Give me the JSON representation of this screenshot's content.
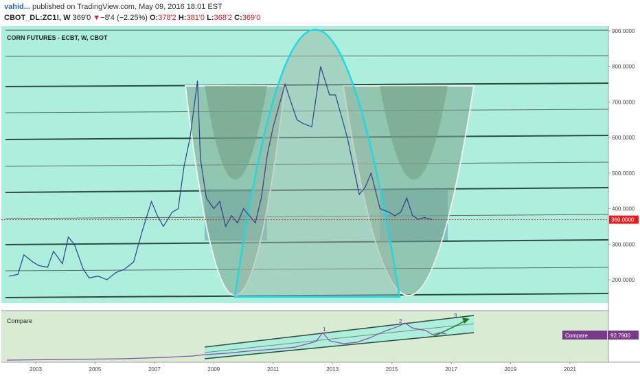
{
  "header": {
    "user": "vahid...",
    "published": "published on TradingView.com, May 09, 2016 18:01 EST",
    "symbol": "CBOT_DL:ZC1!, W",
    "last": "369'0",
    "arrow": "▼",
    "change": "−8'4 (−2.25%)",
    "o_label": "O:",
    "o_value": "378'2",
    "h_label": "H:",
    "h_value": "381'0",
    "l_label": "L:",
    "l_value": "368'2",
    "c_label": "C:",
    "c_value": "369'0"
  },
  "chart_data": {
    "type": "line",
    "title": "CORN FUTURES - ECBT, W, CBOT",
    "ylim": [
      120,
      900
    ],
    "xlim": [
      2002.1,
      2022.5
    ],
    "y_ticks": [
      "200.0000",
      "300.0000",
      "400.0000",
      "500.0000",
      "600.0000",
      "700.0000",
      "800.0000",
      "900.0000"
    ],
    "x_ticks": [
      "2003",
      "2005",
      "2007",
      "2009",
      "2011",
      "2013",
      "2015",
      "2017",
      "2019",
      "2021"
    ],
    "last_price_label": "369.0000",
    "series": [
      {
        "x": [
          2002.1,
          2002.4,
          2002.6,
          2002.9,
          2003.1,
          2003.4,
          2003.6,
          2003.9,
          2004.1,
          2004.3,
          2004.6,
          2004.8,
          2005.1,
          2005.4,
          2005.7,
          2006.0,
          2006.3,
          2006.6,
          2006.9,
          2007.1,
          2007.3,
          2007.6,
          2007.8,
          2008.0,
          2008.2,
          2008.45,
          2008.55,
          2008.75,
          2009.0,
          2009.2,
          2009.4,
          2009.6,
          2009.8,
          2010.0,
          2010.2,
          2010.4,
          2010.6,
          2010.8,
          2011.0,
          2011.2,
          2011.4,
          2011.6,
          2011.8,
          2012.0,
          2012.3,
          2012.6,
          2012.9,
          2013.1,
          2013.3,
          2013.5,
          2013.7,
          2013.9,
          2014.1,
          2014.3,
          2014.6,
          2014.9,
          2015.1,
          2015.3,
          2015.5,
          2015.7,
          2015.9,
          2016.1,
          2016.35
        ],
        "values": [
          210,
          215,
          270,
          250,
          240,
          235,
          280,
          245,
          320,
          300,
          230,
          205,
          210,
          200,
          220,
          230,
          250,
          340,
          420,
          380,
          350,
          390,
          400,
          520,
          600,
          760,
          540,
          430,
          400,
          420,
          350,
          380,
          360,
          400,
          380,
          360,
          430,
          550,
          630,
          690,
          750,
          700,
          650,
          640,
          630,
          800,
          720,
          720,
          660,
          600,
          520,
          440,
          460,
          500,
          400,
          390,
          380,
          390,
          430,
          380,
          370,
          375,
          369
        ]
      }
    ],
    "compare": {
      "label": "Compare",
      "value_label": "92.7900",
      "wave_labels": [
        "1",
        "2",
        "3"
      ]
    }
  }
}
